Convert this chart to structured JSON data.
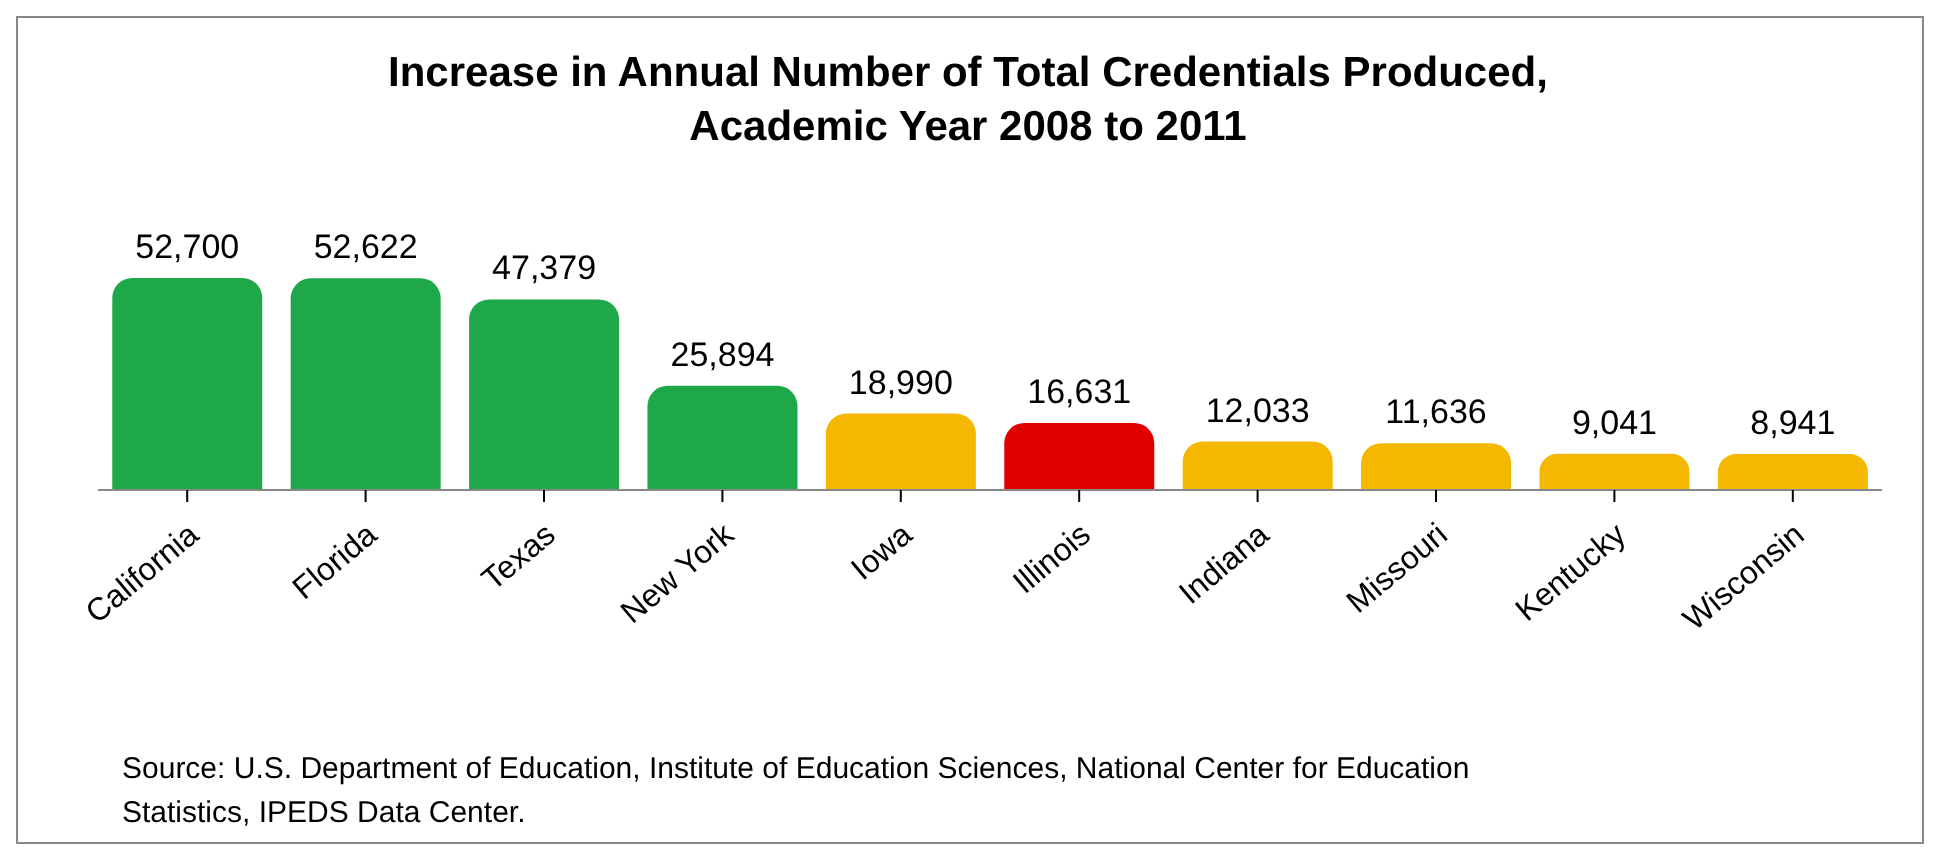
{
  "chart_data": {
    "type": "bar",
    "title": "Increase in Annual Number of Total Credentials Produced, Academic Year 2008 to 2011",
    "categories": [
      "California",
      "Florida",
      "Texas",
      "New York",
      "Iowa",
      "Illinois",
      "Indiana",
      "Missouri",
      "Kentucky",
      "Wisconsin"
    ],
    "values": [
      52700,
      52622,
      47379,
      25894,
      18990,
      16631,
      12033,
      11636,
      9041,
      8941
    ],
    "colors": [
      "#1ea84a",
      "#1ea84a",
      "#1ea84a",
      "#1ea84a",
      "#f5b800",
      "#e00000",
      "#f5b800",
      "#f5b800",
      "#f5b800",
      "#f5b800"
    ],
    "value_labels": [
      "52,700",
      "52,622",
      "47,379",
      "25,894",
      "18,990",
      "16,631",
      "12,033",
      "11,636",
      "9,041",
      "8,941"
    ],
    "grid": false,
    "legend": false,
    "annotations": [
      "Source:  U.S. Department of Education, Institute of Education Sciences, National Center for Education Statistics, IPEDS Data Center."
    ]
  }
}
